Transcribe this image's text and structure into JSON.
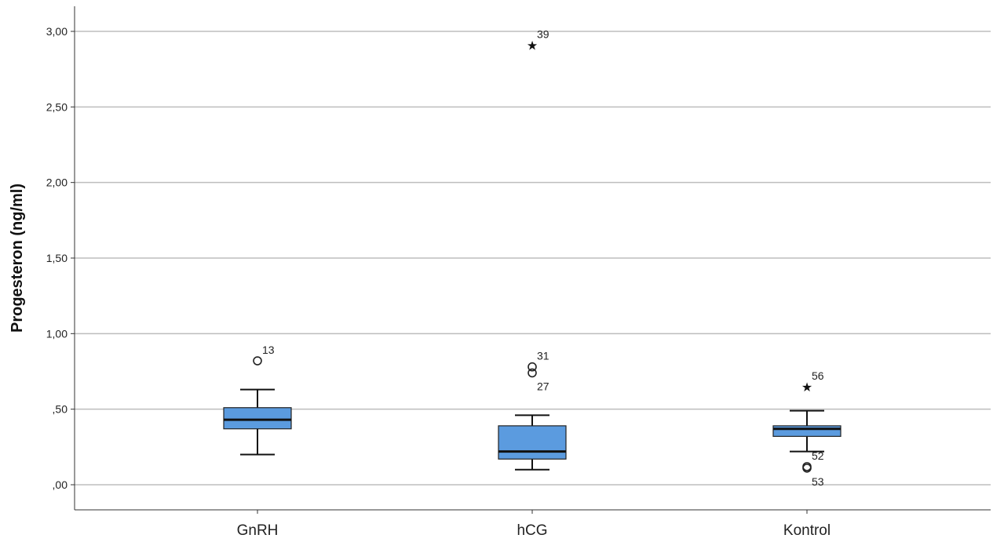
{
  "chart_data": {
    "type": "boxplot",
    "ylabel": "Progesteron (ng/ml)",
    "xlabel": "",
    "ylim": [
      -0.16,
      3.16
    ],
    "yticks": [
      {
        "value": 0,
        "label": ",00"
      },
      {
        "value": 0.5,
        "label": ",50"
      },
      {
        "value": 1.0,
        "label": "1,00"
      },
      {
        "value": 1.5,
        "label": "1,50"
      },
      {
        "value": 2.0,
        "label": "2,00"
      },
      {
        "value": 2.5,
        "label": "2,50"
      },
      {
        "value": 3.0,
        "label": "3,00"
      }
    ],
    "grid": true,
    "box_color": "#5b9bdf",
    "categories": [
      "GnRH",
      "hCG",
      "Kontrol"
    ],
    "boxes": [
      {
        "category": "GnRH",
        "whisker_low": 0.2,
        "q1": 0.37,
        "median": 0.43,
        "q3": 0.51,
        "whisker_high": 0.63,
        "outliers": [
          {
            "value": 0.82,
            "marker": "circle",
            "label": "13"
          }
        ]
      },
      {
        "category": "hCG",
        "whisker_low": 0.1,
        "q1": 0.17,
        "median": 0.22,
        "q3": 0.39,
        "whisker_high": 0.46,
        "outliers": [
          {
            "value": 2.91,
            "marker": "star",
            "label": "39"
          },
          {
            "value": 0.78,
            "marker": "circle",
            "label": "31"
          },
          {
            "value": 0.74,
            "marker": "circle",
            "label": "27"
          }
        ]
      },
      {
        "category": "Kontrol",
        "whisker_low": 0.22,
        "q1": 0.32,
        "median": 0.37,
        "q3": 0.39,
        "whisker_high": 0.49,
        "outliers": [
          {
            "value": 0.65,
            "marker": "star",
            "label": "56"
          },
          {
            "value": 0.12,
            "marker": "circle",
            "label": "52"
          },
          {
            "value": 0.11,
            "marker": "circle",
            "label": "53"
          }
        ]
      }
    ]
  }
}
